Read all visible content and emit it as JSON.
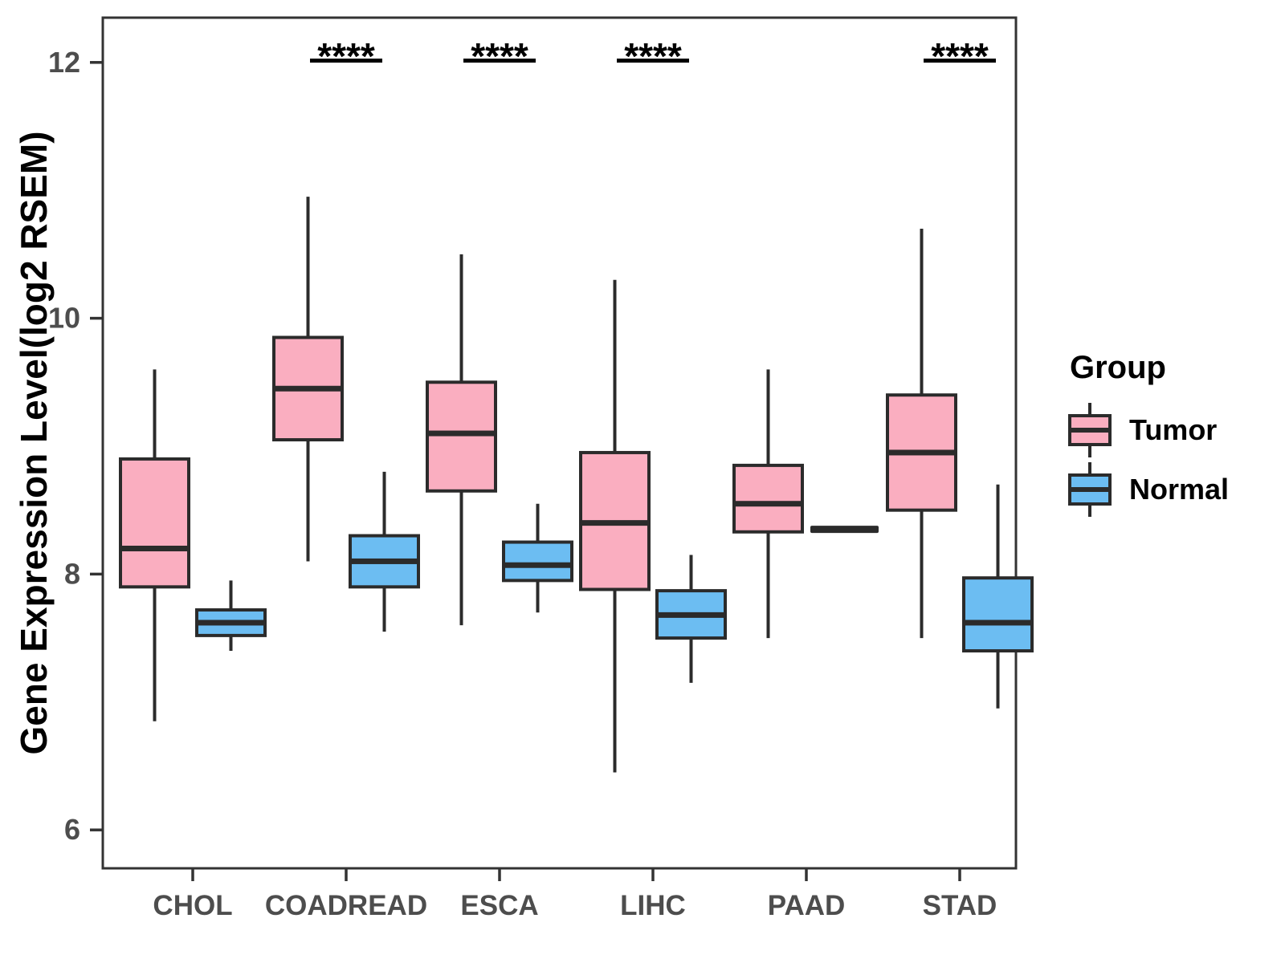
{
  "chart_data": {
    "type": "boxplot",
    "title": "",
    "ylabel": "Gene Expression Level(log2 RSEM)",
    "xlabel": "",
    "categories": [
      "CHOL",
      "COADREAD",
      "ESCA",
      "LIHC",
      "PAAD",
      "STAD"
    ],
    "yticks": [
      6,
      8,
      10,
      12
    ],
    "ylim": [
      5.7,
      12.35
    ],
    "grid": false,
    "legend": {
      "title": "Group",
      "position": "right",
      "entries": [
        {
          "label": "Tumor",
          "color": "#FAAEC0"
        },
        {
          "label": "Normal",
          "color": "#6CBDF2"
        }
      ]
    },
    "series": [
      {
        "name": "Tumor",
        "color": "#FAAEC0",
        "boxes": [
          {
            "category": "CHOL",
            "min": 6.85,
            "q1": 7.9,
            "median": 8.2,
            "q3": 8.9,
            "max": 9.6
          },
          {
            "category": "COADREAD",
            "min": 8.1,
            "q1": 9.05,
            "median": 9.45,
            "q3": 9.85,
            "max": 10.95
          },
          {
            "category": "ESCA",
            "min": 7.6,
            "q1": 8.65,
            "median": 9.1,
            "q3": 9.5,
            "max": 10.5
          },
          {
            "category": "LIHC",
            "min": 6.45,
            "q1": 7.88,
            "median": 8.4,
            "q3": 8.95,
            "max": 10.3
          },
          {
            "category": "PAAD",
            "min": 7.5,
            "q1": 8.33,
            "median": 8.55,
            "q3": 8.85,
            "max": 9.6
          },
          {
            "category": "STAD",
            "min": 7.5,
            "q1": 8.5,
            "median": 8.95,
            "q3": 9.4,
            "max": 10.7
          }
        ]
      },
      {
        "name": "Normal",
        "color": "#6CBDF2",
        "boxes": [
          {
            "category": "CHOL",
            "min": 7.4,
            "q1": 7.52,
            "median": 7.62,
            "q3": 7.72,
            "max": 7.95
          },
          {
            "category": "COADREAD",
            "min": 7.55,
            "q1": 7.9,
            "median": 8.1,
            "q3": 8.3,
            "max": 8.8
          },
          {
            "category": "ESCA",
            "min": 7.7,
            "q1": 7.95,
            "median": 8.07,
            "q3": 8.25,
            "max": 8.55
          },
          {
            "category": "LIHC",
            "min": 7.15,
            "q1": 7.5,
            "median": 7.68,
            "q3": 7.87,
            "max": 8.15
          },
          {
            "category": "PAAD",
            "min": 8.35,
            "q1": 8.35,
            "median": 8.35,
            "q3": 8.35,
            "max": 8.35
          },
          {
            "category": "STAD",
            "min": 6.95,
            "q1": 7.4,
            "median": 7.62,
            "q3": 7.97,
            "max": 8.7
          }
        ]
      }
    ],
    "significance": [
      {
        "category": "COADREAD",
        "label": "****"
      },
      {
        "category": "ESCA",
        "label": "****"
      },
      {
        "category": "LIHC",
        "label": "****"
      },
      {
        "category": "STAD",
        "label": "****"
      }
    ],
    "colors": {
      "box_outline": "#2B2B2B",
      "panel_border": "#333333",
      "tick_label": "#4D4D4D",
      "annotation": "#000000"
    }
  }
}
